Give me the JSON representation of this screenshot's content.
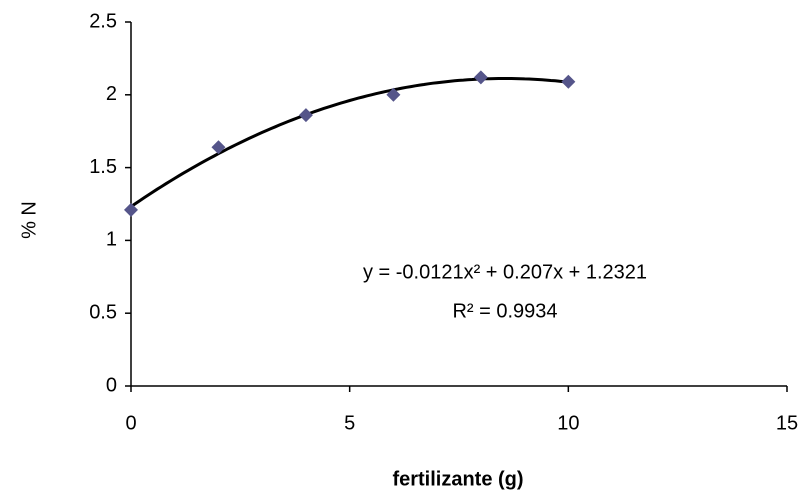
{
  "chart_data": {
    "type": "scatter",
    "x_label": "fertilizante (g)",
    "y_label": "% N",
    "x": [
      0,
      2,
      4,
      6,
      8,
      10
    ],
    "series": [
      {
        "color": "#55558a",
        "values": [
          1.21,
          1.64,
          1.86,
          2.0,
          2.12,
          2.09
        ]
      }
    ],
    "trendline": {
      "type": "polynomial",
      "order": 2,
      "color": "#000000"
    },
    "annotations": [
      "y = -0.0121x² + 0.207x + 1.2321",
      "R² = 0.9934"
    ],
    "xlim": [
      0,
      15
    ],
    "xticks": [
      0,
      5,
      10,
      15
    ],
    "ylim": [
      0,
      2.5
    ],
    "yticks": [
      0,
      0.5,
      1,
      1.5,
      2,
      2.5
    ],
    "grid": false
  }
}
